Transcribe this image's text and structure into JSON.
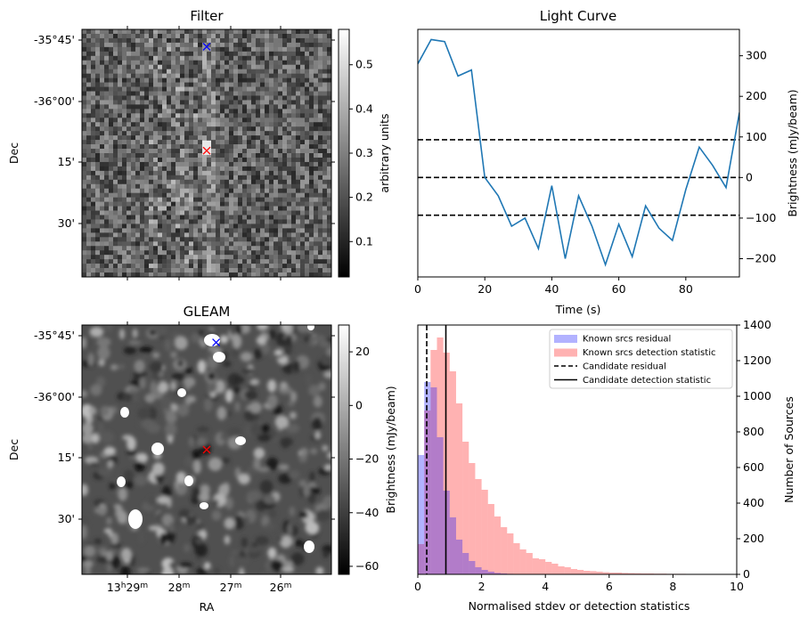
{
  "filter": {
    "title": "Filter",
    "ylabel": "Dec",
    "yticks": [
      "-35°45'",
      "-36°00'",
      "15'",
      "30'"
    ],
    "colorbar": {
      "label": "arbitrary units",
      "ticks": [
        "0.5",
        "0.4",
        "0.3",
        "0.2",
        "0.1"
      ],
      "tick_values": [
        0.5,
        0.4,
        0.3,
        0.2,
        0.1
      ],
      "range": [
        0.02,
        0.58
      ]
    },
    "markers": [
      {
        "symbol": "x",
        "color": "#0000ff",
        "ra_frac": 0.5,
        "dec_frac": 0.07
      },
      {
        "symbol": "x",
        "color": "#ff0000",
        "ra_frac": 0.5,
        "dec_frac": 0.49
      }
    ]
  },
  "gleam": {
    "title": "GLEAM",
    "ylabel": "Dec",
    "xlabel": "RA",
    "yticks": [
      "-35°45'",
      "-36°00'",
      "15'",
      "30'"
    ],
    "xticks": [
      {
        "h": "13",
        "hs": "h",
        "m": "29",
        "ms": "m"
      },
      {
        "h": "",
        "hs": "",
        "m": "28",
        "ms": "m"
      },
      {
        "h": "",
        "hs": "",
        "m": "27",
        "ms": "m"
      },
      {
        "h": "",
        "hs": "",
        "m": "26",
        "ms": "m"
      }
    ],
    "colorbar": {
      "label": "Brightness (mJy/beam)",
      "ticks": [
        "20",
        "0",
        "−20",
        "−40",
        "−60"
      ],
      "tick_values": [
        20,
        0,
        -20,
        -40,
        -60
      ],
      "range": [
        -63,
        30
      ]
    },
    "markers": [
      {
        "symbol": "x",
        "color": "#0000ff",
        "ra_frac": 0.52,
        "dec_frac": 0.07
      },
      {
        "symbol": "x",
        "color": "#ff0000",
        "ra_frac": 0.5,
        "dec_frac": 0.5
      }
    ]
  },
  "chart_data": [
    {
      "type": "line",
      "title": "Light Curve",
      "xlabel": "Time (s)",
      "ylabel": "Brightness (mJy/beam)",
      "xlim": [
        0,
        96
      ],
      "ylim": [
        -245,
        365
      ],
      "xticks": [
        0,
        20,
        40,
        60,
        80
      ],
      "yticks": [
        300,
        200,
        100,
        0,
        -100,
        -200
      ],
      "ytick_labels": [
        "300",
        "200",
        "100",
        "0",
        "−100",
        "−200"
      ],
      "color": "#1f77b4",
      "x": [
        0,
        4,
        8,
        12,
        16,
        20,
        24,
        28,
        32,
        36,
        40,
        44,
        48,
        52,
        56,
        60,
        64,
        68,
        72,
        76,
        80,
        84,
        88,
        92,
        96
      ],
      "y": [
        280,
        340,
        335,
        250,
        265,
        0,
        -45,
        -120,
        -100,
        -175,
        -20,
        -200,
        -45,
        -120,
        -215,
        -115,
        -195,
        -70,
        -125,
        -155,
        -30,
        75,
        30,
        -25,
        160
      ],
      "hlines": [
        {
          "y": 93,
          "style": "dashed"
        },
        {
          "y": 0,
          "style": "dashed"
        },
        {
          "y": -93,
          "style": "dashed"
        }
      ]
    },
    {
      "type": "histogram",
      "xlabel": "Normalised stdev or detection statistics",
      "ylabel": "Brightness (mJy/beam)",
      "ylabel_right": "Number of Sources",
      "xlim": [
        0,
        10
      ],
      "ylim": [
        0,
        1400
      ],
      "xticks": [
        0,
        2,
        4,
        6,
        8,
        10
      ],
      "yticks": [
        0,
        200,
        400,
        600,
        800,
        1000,
        1200,
        1400
      ],
      "bin_width": 0.2,
      "series": [
        {
          "name": "Known srcs residual",
          "color": "#0000ff",
          "alpha": 0.3,
          "values": [
            670,
            1080,
            1050,
            770,
            470,
            320,
            195,
            120,
            75,
            40,
            25,
            15,
            8,
            5,
            3,
            2,
            1,
            1,
            0,
            0
          ]
        },
        {
          "name": "Known srcs detection statistic",
          "color": "#ff0000",
          "alpha": 0.3,
          "values": [
            170,
            920,
            1260,
            1330,
            1245,
            1140,
            960,
            745,
            625,
            535,
            475,
            395,
            325,
            265,
            230,
            175,
            140,
            120,
            90,
            85,
            70,
            60,
            45,
            40,
            30,
            25,
            20,
            18,
            15,
            12,
            10,
            10,
            8,
            7,
            6,
            5,
            5,
            4,
            4,
            3,
            3,
            3,
            2,
            2,
            2,
            2,
            1,
            1,
            1,
            1
          ]
        }
      ],
      "vlines": [
        {
          "name": "Candidate residual",
          "x": 0.28,
          "style": "dashed"
        },
        {
          "name": "Candidate detection statistic",
          "x": 0.88,
          "style": "solid"
        }
      ]
    }
  ]
}
